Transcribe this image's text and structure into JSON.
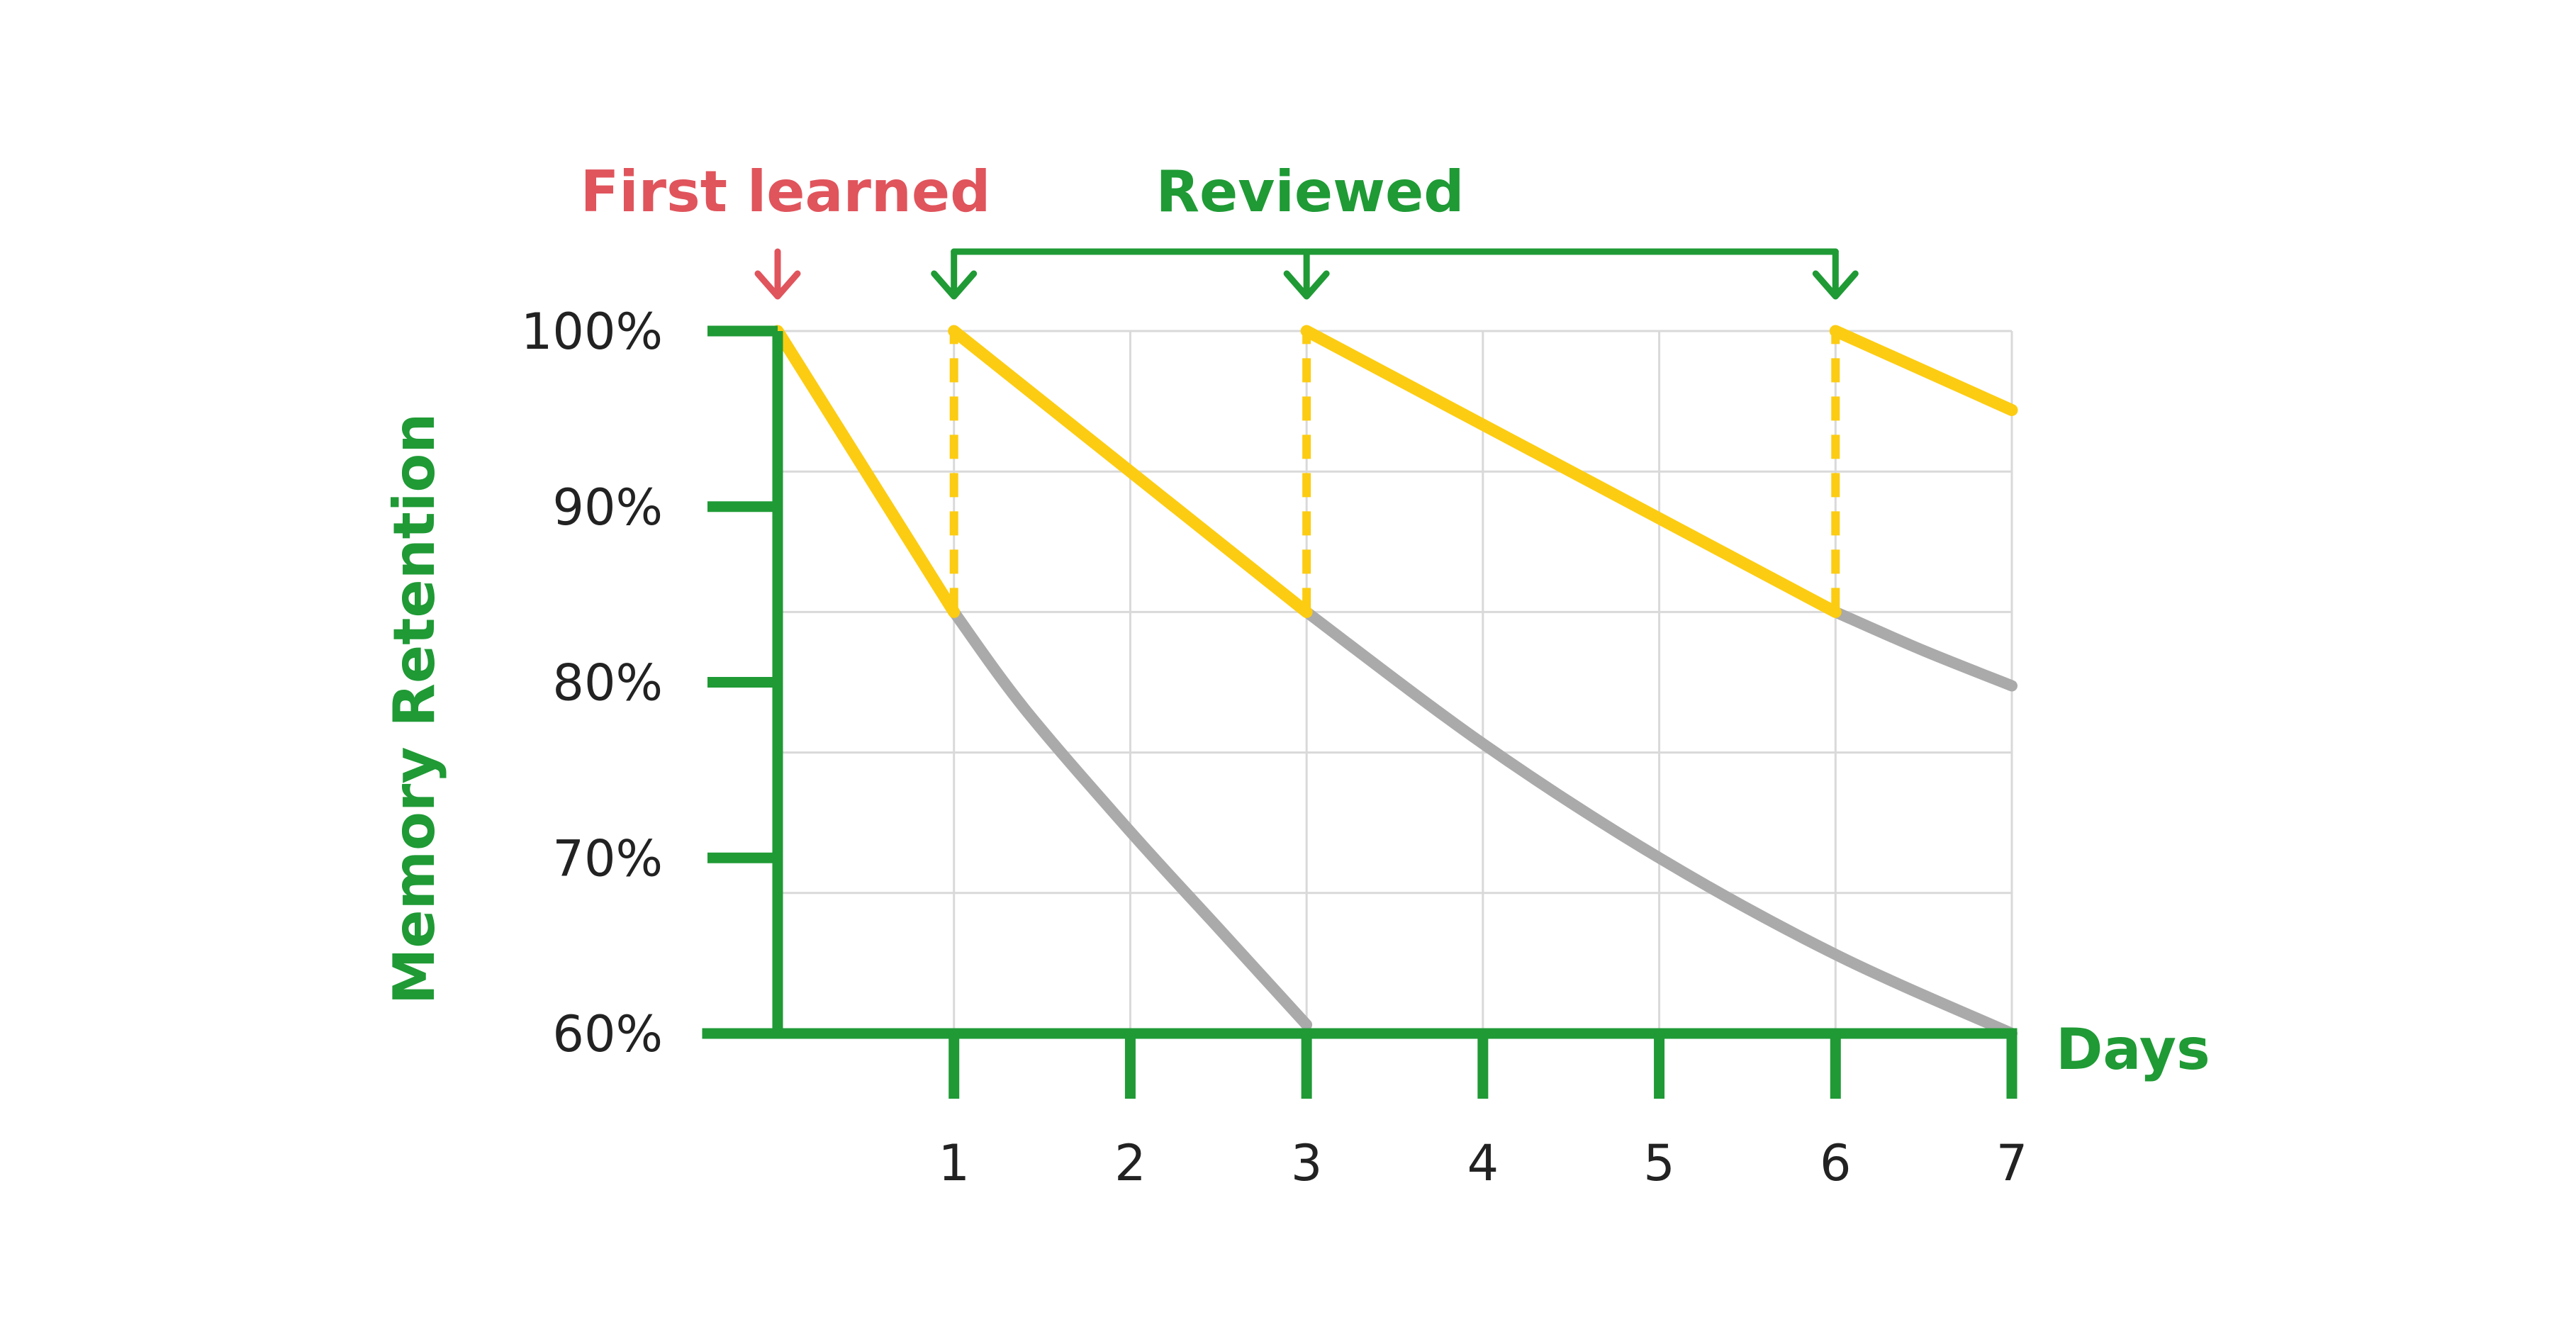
{
  "chart_data": {
    "type": "line",
    "ylabel": "Memory Retention",
    "xlabel": "Days",
    "xlim": [
      0,
      7
    ],
    "ylim": [
      60,
      100
    ],
    "x_ticks": [
      1,
      2,
      3,
      4,
      5,
      6,
      7
    ],
    "y_ticks": [
      100,
      90,
      80,
      70,
      60
    ],
    "y_tick_labels": [
      "100%",
      "90%",
      "80%",
      "70%",
      "60%"
    ],
    "grid": true,
    "annotations": {
      "first_learned": {
        "text": "First learned",
        "day": 0
      },
      "reviewed": {
        "text": "Reviewed",
        "days": [
          1,
          3,
          6
        ]
      }
    },
    "series": [
      {
        "role": "retention-with-review",
        "points": [
          [
            0,
            100
          ],
          [
            1,
            84
          ],
          [
            1,
            100
          ],
          [
            3,
            84
          ],
          [
            3,
            100
          ],
          [
            6,
            84
          ],
          [
            6,
            100
          ],
          [
            7,
            95.5
          ]
        ],
        "review_days": [
          1,
          3,
          6
        ]
      },
      {
        "role": "forgetting",
        "points": [
          [
            1,
            84
          ],
          [
            1.4,
            78.5
          ],
          [
            2,
            71.5
          ],
          [
            2.5,
            66
          ],
          [
            3,
            60.5
          ]
        ]
      },
      {
        "role": "forgetting",
        "points": [
          [
            3,
            84
          ],
          [
            4,
            76.5
          ],
          [
            5,
            70
          ],
          [
            6,
            64.5
          ],
          [
            7,
            60
          ]
        ]
      },
      {
        "role": "forgetting",
        "points": [
          [
            6,
            84
          ],
          [
            6.5,
            81.8
          ],
          [
            7,
            79.8
          ]
        ]
      }
    ],
    "colors": {
      "axis": "#1f9a35",
      "retention": "#fccc12",
      "forgetting": "#aaaaaa",
      "grid": "#d9d9d9",
      "first_learned": "#e0545c",
      "reviewed": "#1f9a35"
    }
  }
}
